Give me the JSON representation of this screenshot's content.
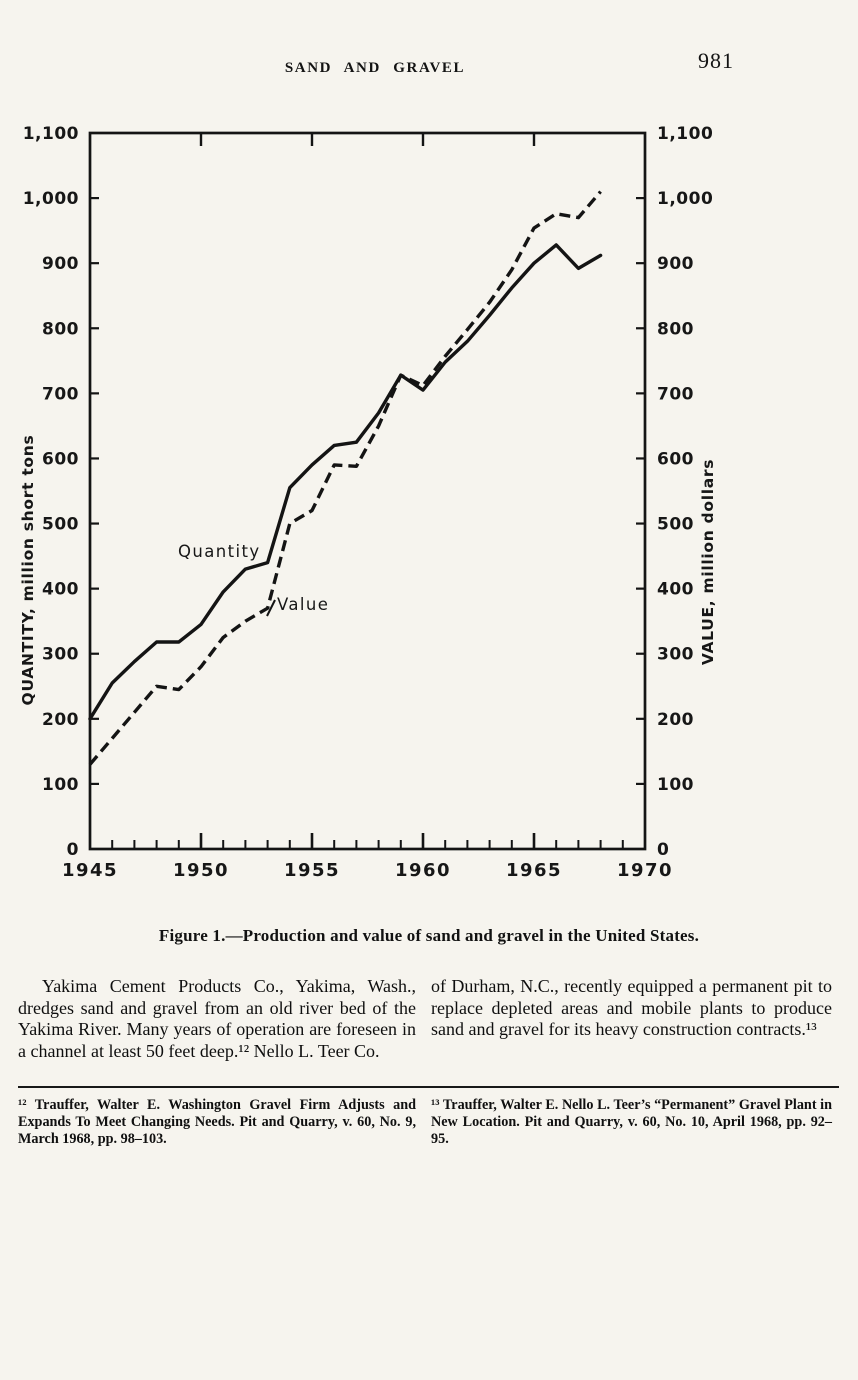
{
  "page": {
    "header": {
      "title": "SAND AND GRAVEL",
      "page_number": "981"
    },
    "figure": {
      "caption": "Figure 1.—Production and value of sand and gravel in the United States."
    },
    "body": {
      "left_column": "Yakima Cement Products Co., Yakima, Wash., dredges sand and gravel from an old river bed of the Yakima River. Many years of operation are foreseen in a channel at least 50 feet deep.¹² Nello L. Teer Co.",
      "right_column": "of Durham, N.C., recently equipped a permanent pit to replace depleted areas and mobile plants to produce sand and gravel for its heavy construction contracts.¹³"
    },
    "footnotes": {
      "note12": "¹² Trauffer, Walter E. Washington Gravel Firm Adjusts and Expands To Meet Changing Needs. Pit and Quarry, v. 60, No. 9, March 1968, pp. 98–103.",
      "note13": "¹³ Trauffer, Walter E. Nello L. Teer’s “Permanent” Gravel Plant in New Location. Pit and Quarry, v. 60, No. 10, April 1968, pp. 92–95."
    }
  },
  "chart_data": {
    "type": "line",
    "title": "Figure 1.—Production and value of sand and gravel in the United States.",
    "x": [
      1945,
      1946,
      1947,
      1948,
      1949,
      1950,
      1951,
      1952,
      1953,
      1954,
      1955,
      1956,
      1957,
      1958,
      1959,
      1960,
      1961,
      1962,
      1963,
      1964,
      1965,
      1966,
      1967,
      1968
    ],
    "series": [
      {
        "name": "Quantity",
        "line_style": "solid",
        "axis": "left",
        "values": [
          200,
          255,
          288,
          318,
          318,
          345,
          395,
          430,
          440,
          555,
          590,
          620,
          625,
          670,
          728,
          705,
          748,
          780,
          820,
          862,
          900,
          928,
          892,
          912
        ]
      },
      {
        "name": "Value",
        "line_style": "dashed",
        "axis": "right",
        "values": [
          130,
          170,
          210,
          250,
          245,
          280,
          325,
          350,
          370,
          500,
          520,
          590,
          588,
          650,
          728,
          712,
          757,
          798,
          840,
          890,
          954,
          976,
          970,
          1010
        ]
      }
    ],
    "xlabel": "",
    "ylabel_left": "QUANTITY, million short tons",
    "ylabel_right": "VALUE, million dollars",
    "xlim": [
      1945,
      1970
    ],
    "ylim": [
      0,
      1100
    ],
    "xtick_major": [
      1945,
      1950,
      1955,
      1960,
      1965,
      1970
    ],
    "xtick_labels": [
      "1945",
      "1950",
      "1955",
      "1960",
      "1965",
      "1970"
    ],
    "xtick_minor_step": 1,
    "ytick_step": 100,
    "ytick_labels": [
      "0",
      "100",
      "200",
      "300",
      "400",
      "500",
      "600",
      "700",
      "800",
      "900",
      "1,000",
      "1,100"
    ],
    "grid": false,
    "legend": "inline-labels",
    "line_color": "#141414"
  }
}
